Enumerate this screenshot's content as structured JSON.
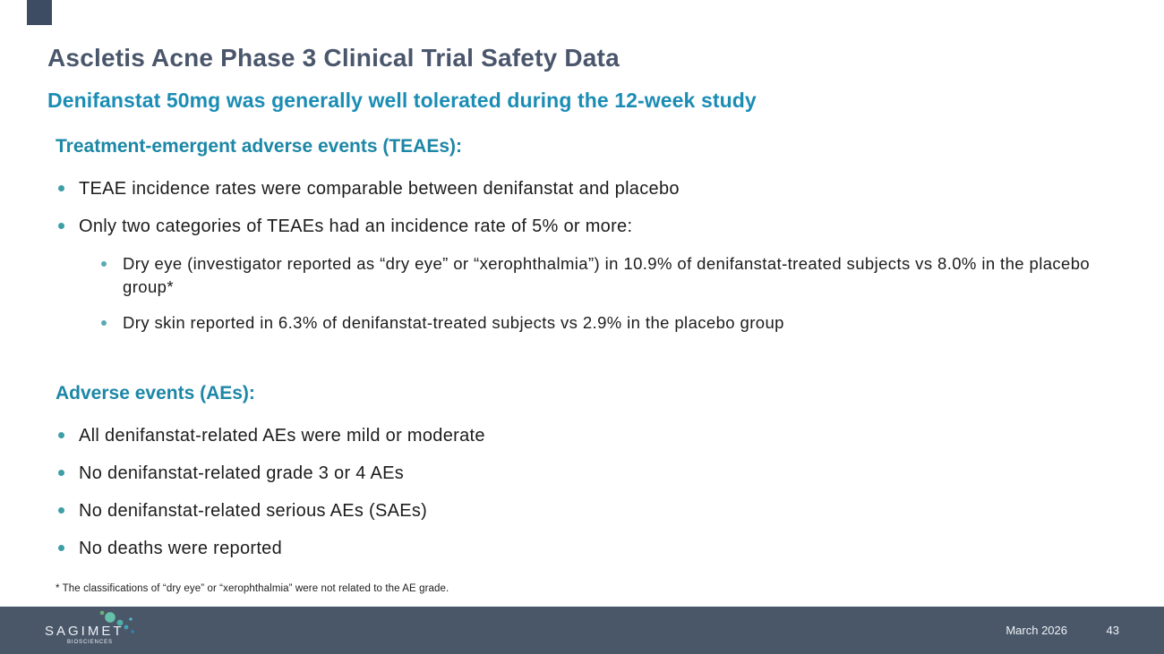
{
  "slide": {
    "title": "Ascletis Acne Phase 3 Clinical Trial Safety Data",
    "subtitle": "Denifanstat 50mg was generally well tolerated during the 12-week study",
    "sections": [
      {
        "heading": "Treatment-emergent adverse events (TEAEs):",
        "bullets": [
          {
            "text": "TEAE incidence rates were comparable between denifanstat and placebo",
            "sub": []
          },
          {
            "text": "Only two categories of TEAEs had an incidence rate of 5% or more:",
            "sub": [
              "Dry eye (investigator reported as “dry eye” or “xerophthalmia”) in 10.9% of denifanstat-treated subjects vs 8.0% in the placebo group*",
              "Dry skin reported in 6.3% of denifanstat-treated subjects vs 2.9% in the placebo group"
            ]
          }
        ]
      },
      {
        "heading": "Adverse events (AEs):",
        "bullets": [
          {
            "text": "All denifanstat-related AEs were mild or moderate",
            "sub": []
          },
          {
            "text": "No denifanstat-related grade 3 or 4 AEs",
            "sub": []
          },
          {
            "text": "No denifanstat-related serious AEs (SAEs)",
            "sub": []
          },
          {
            "text": "No deaths were reported",
            "sub": []
          }
        ]
      }
    ],
    "footnote": "* The classifications of “dry eye” or “xerophthalmia” were not related to the AE grade.",
    "footer": {
      "logo_name": "SAGIMET",
      "logo_tagline": "BIOSCIENCES",
      "date": "March 2026",
      "page_number": "43"
    },
    "colors": {
      "title_text": "#4A566B",
      "subtitle_text": "#1B8DB5",
      "heading_text": "#1C87A6",
      "body_text": "#1C1C1C",
      "bullet_dot": "#3E9EA6",
      "sub_bullet_dot": "#5AAAB4",
      "corner_accent": "#3D4C63",
      "footer_bg": "#4A5769",
      "footer_text": "#EFF2F6",
      "logo_dots": [
        "#6FB079",
        "#66C1AA",
        "#4FAFA6",
        "#3FA3B8",
        "#55BCD4",
        "#2F86B0"
      ]
    }
  }
}
